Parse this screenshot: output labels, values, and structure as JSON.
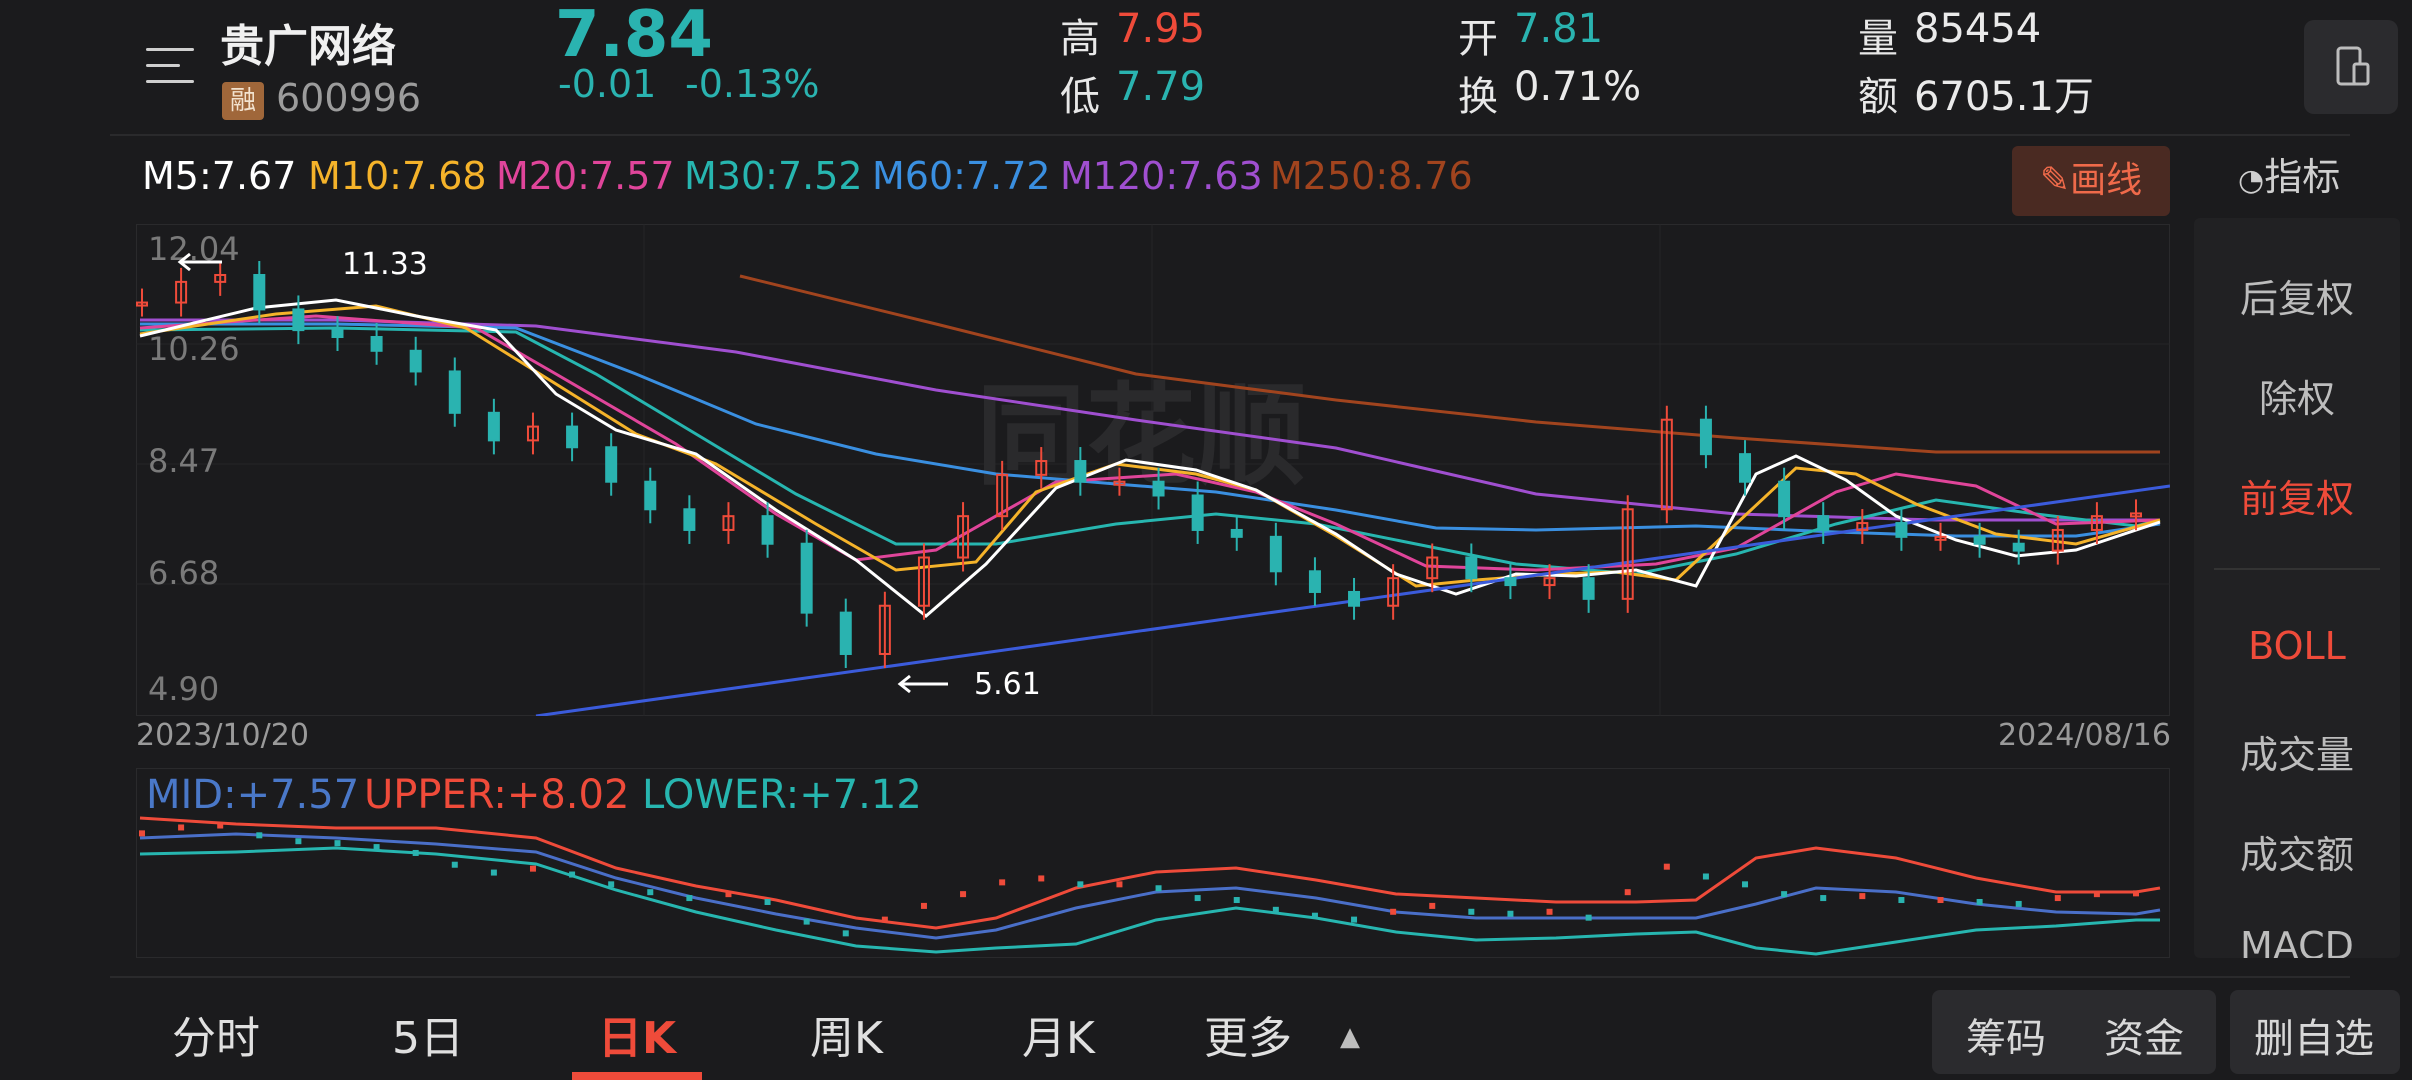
{
  "stock": {
    "name": "贵广网络",
    "margin_tag": "融",
    "code": "600996",
    "price": "7.84",
    "change": "-0.01",
    "change_pct": "-0.13%"
  },
  "stats": {
    "high_label": "高",
    "high": "7.95",
    "low_label": "低",
    "low": "7.79",
    "open_label": "开",
    "open": "7.81",
    "turnover_label": "换",
    "turnover": "0.71%",
    "volume_label": "量",
    "volume": "85454",
    "amount_label": "额",
    "amount": "6705.1万"
  },
  "ma_legend": [
    {
      "label": "M5:7.67",
      "color": "#ffffff"
    },
    {
      "label": "M10:7.68",
      "color": "#f5b32a"
    },
    {
      "label": "M20:7.57",
      "color": "#e0459a"
    },
    {
      "label": "M30:7.52",
      "color": "#27b6b0"
    },
    {
      "label": "M60:7.72",
      "color": "#3a8fe0"
    },
    {
      "label": "M120:7.63",
      "color": "#a04fd0"
    },
    {
      "label": "M250:8.76",
      "color": "#a1441e"
    }
  ],
  "toolbar": {
    "draw_label": "画线",
    "indicator_label": "指标"
  },
  "right_panel": {
    "items": [
      "后复权",
      "除权",
      "前复权",
      "BOLL",
      "成交量",
      "成交额",
      "MACD"
    ],
    "active_adjust": "前复权",
    "active_indicator": "BOLL"
  },
  "chart": {
    "y_ticks": [
      "12.04",
      "10.26",
      "8.47",
      "6.68",
      "4.90"
    ],
    "start_date": "2023/10/20",
    "end_date": "2024/08/16",
    "max_label": "11.33",
    "min_label": "5.61",
    "watermark": "同花顺"
  },
  "boll": {
    "mid": "MID:+7.57",
    "upper": "UPPER:+8.02",
    "lower": "LOWER:+7.12"
  },
  "tabs": [
    "分时",
    "5日",
    "日K",
    "周K",
    "月K",
    "更多"
  ],
  "active_tab": "日K",
  "bottom_buttons": {
    "chips": "筹码",
    "funds": "资金",
    "remove_watch": "删自选"
  },
  "colors": {
    "up": "#ef4b3a",
    "down": "#2ab3b0",
    "trendline": "#3b5bdb",
    "background": "#1b1b1d"
  },
  "chart_data": {
    "type": "candlestick",
    "y_range": [
      4.9,
      12.04
    ],
    "close_series": [
      10.9,
      11.2,
      11.3,
      10.8,
      10.5,
      10.4,
      10.2,
      9.9,
      9.3,
      8.9,
      9.1,
      8.8,
      8.3,
      7.9,
      7.6,
      7.8,
      7.4,
      6.4,
      5.8,
      6.5,
      7.2,
      7.8,
      8.4,
      8.6,
      8.3,
      8.3,
      8.1,
      7.6,
      7.5,
      7.0,
      6.7,
      6.5,
      6.9,
      7.2,
      6.9,
      6.8,
      6.9,
      6.6,
      7.9,
      9.2,
      8.7,
      8.3,
      7.8,
      7.6,
      7.7,
      7.5,
      7.5,
      7.4,
      7.3,
      7.6,
      7.8,
      7.84
    ]
  }
}
